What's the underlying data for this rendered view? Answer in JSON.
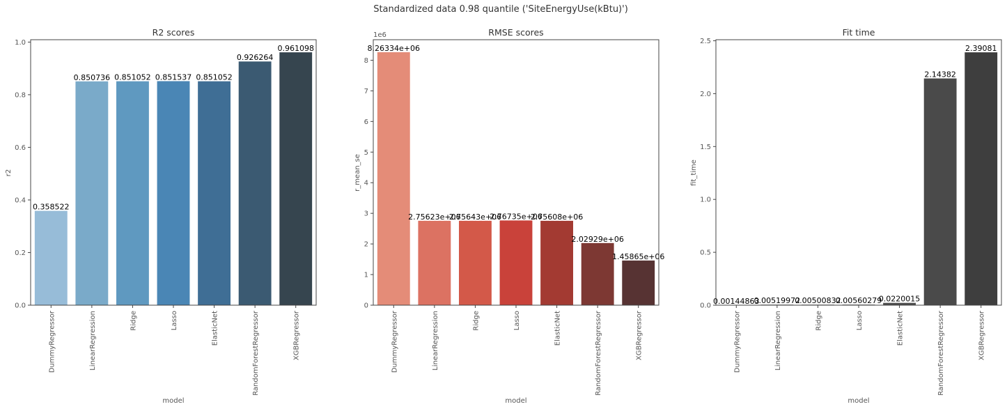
{
  "figure": {
    "title": "Standardized data 0.98 quantile ('SiteEnergyUse(kBtu)')"
  },
  "chart_data": [
    {
      "type": "bar",
      "title": "R2 scores",
      "xlabel": "model",
      "ylabel": "r2",
      "categories": [
        "DummyRegressor",
        "LinearRegression",
        "Ridge",
        "Lasso",
        "ElasticNet",
        "RandomForestRegressor",
        "XGBRegressor"
      ],
      "values": [
        0.358522,
        0.850736,
        0.851052,
        0.851537,
        0.851052,
        0.926264,
        0.961098
      ],
      "data_labels": [
        "0.358522",
        "0.850736",
        "0.851052",
        "0.851537",
        "0.851052",
        "0.926264",
        "0.961098"
      ],
      "ylim": [
        0,
        1.009
      ],
      "yticks": [
        0,
        0.2,
        0.4,
        0.6,
        0.8,
        1.0
      ],
      "ytick_labels": [
        "0.0",
        "0.2",
        "0.4",
        "0.6",
        "0.8",
        "1.0"
      ],
      "offset_label": "",
      "colors": [
        "#97bcd8",
        "#7aaac9",
        "#5f99c0",
        "#4a86b5",
        "#3f6e95",
        "#3b5a72",
        "#36454f"
      ],
      "grid": false
    },
    {
      "type": "bar",
      "title": "RMSE scores",
      "xlabel": "model",
      "ylabel": "r_mean_se",
      "categories": [
        "DummyRegressor",
        "LinearRegression",
        "Ridge",
        "Lasso",
        "ElasticNet",
        "RandomForestRegressor",
        "XGBRegressor"
      ],
      "values": [
        8263340,
        2756230,
        2756430,
        2767350,
        2756080,
        2029290,
        1458650
      ],
      "data_labels": [
        "8.26334e+06",
        "2.75623e+06",
        "2.75643e+06",
        "2.76735e+06",
        "2.75608e+06",
        "2.02929e+06",
        "1.45865e+06"
      ],
      "ylim": [
        0,
        8670000
      ],
      "yticks": [
        0,
        1000000,
        2000000,
        3000000,
        4000000,
        5000000,
        6000000,
        7000000,
        8000000
      ],
      "ytick_labels": [
        "0",
        "1",
        "2",
        "3",
        "4",
        "5",
        "6",
        "7",
        "8"
      ],
      "offset_label": "1e6",
      "colors": [
        "#e48c78",
        "#dc7262",
        "#d35949",
        "#c9423a",
        "#a33a32",
        "#7d3833",
        "#573333"
      ],
      "grid": false
    },
    {
      "type": "bar",
      "title": "Fit time",
      "xlabel": "model",
      "ylabel": "fit_time",
      "categories": [
        "DummyRegressor",
        "LinearRegression",
        "Ridge",
        "Lasso",
        "ElasticNet",
        "RandomForestRegressor",
        "XGBRegressor"
      ],
      "values": [
        0.00144863,
        0.00519972,
        0.00500832,
        0.00560279,
        0.0220015,
        2.14382,
        2.39081
      ],
      "data_labels": [
        "0.00144863",
        "0.00519972",
        "0.00500832",
        "0.00560279",
        "0.0220015",
        "2.14382",
        "2.39081"
      ],
      "ylim": [
        0,
        2.51
      ],
      "yticks": [
        0,
        0.5,
        1.0,
        1.5,
        2.0,
        2.5
      ],
      "ytick_labels": [
        "0.0",
        "0.5",
        "1.0",
        "1.5",
        "2.0",
        "2.5"
      ],
      "offset_label": "",
      "colors": [
        "#5a5a5a",
        "#5a5a5a",
        "#5a5a5a",
        "#5a5a5a",
        "#4c4c4c",
        "#4a4a4a",
        "#3e3e3e"
      ],
      "grid": false
    }
  ]
}
